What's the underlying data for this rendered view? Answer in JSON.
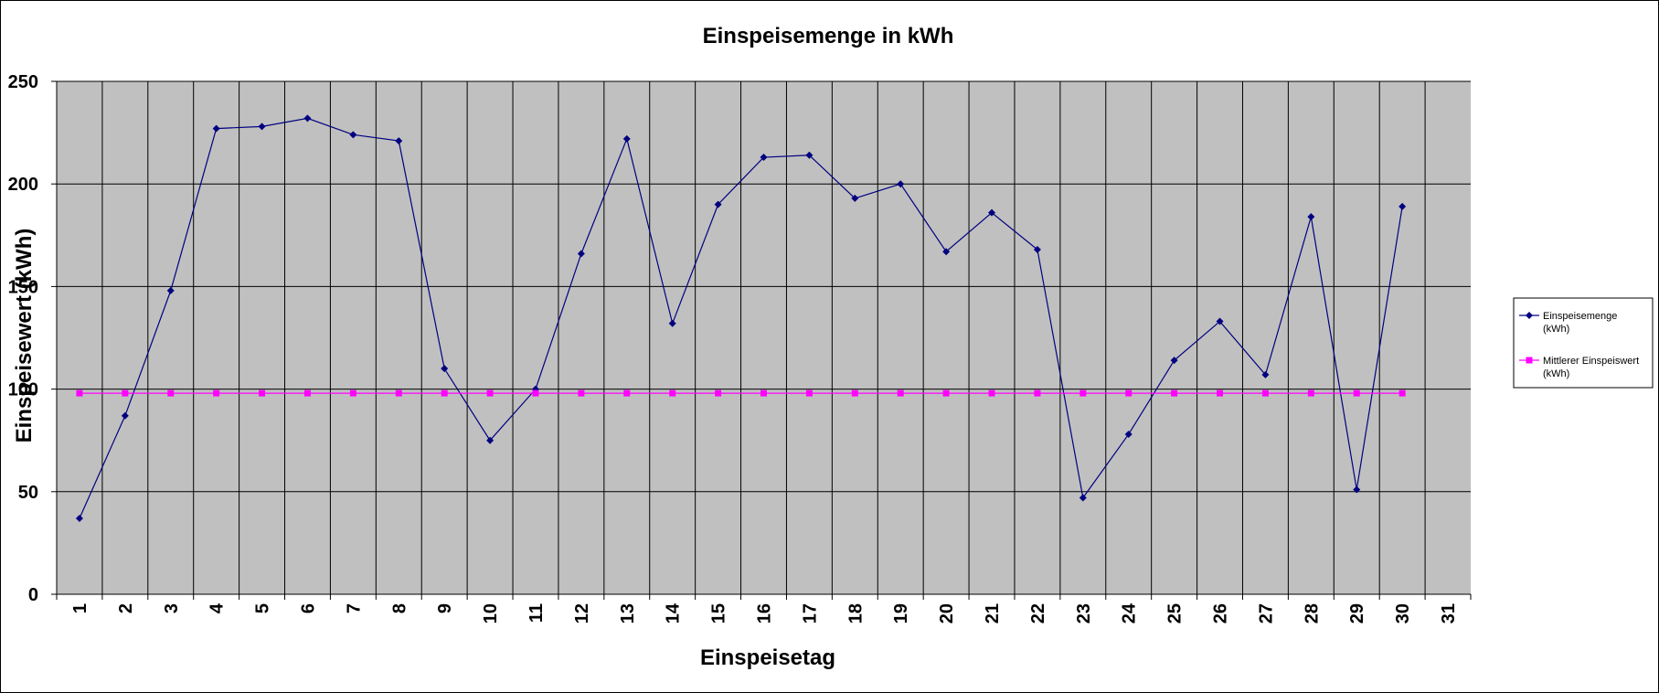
{
  "chart_data": {
    "type": "line",
    "title": "Einspeisemenge in kWh",
    "xlabel": "Einspeisetag",
    "ylabel": "Einspeisewert (kWh)",
    "ylim": [
      0,
      250
    ],
    "yticks": [
      0,
      50,
      100,
      150,
      200,
      250
    ],
    "grid": true,
    "legend_position": "right",
    "background_color": "#c0c0c0",
    "categories": [
      "1",
      "2",
      "3",
      "4",
      "5",
      "6",
      "7",
      "8",
      "9",
      "10",
      "11",
      "12",
      "13",
      "14",
      "15",
      "16",
      "17",
      "18",
      "19",
      "20",
      "21",
      "22",
      "23",
      "24",
      "25",
      "26",
      "27",
      "28",
      "29",
      "30",
      "31"
    ],
    "series": [
      {
        "name": "Einspeisemenge (kWh)",
        "name_lines": [
          "Einspeisemenge",
          "(kWh)"
        ],
        "color": "#000080",
        "marker": "diamond",
        "values": [
          37,
          87,
          148,
          227,
          228,
          232,
          224,
          221,
          110,
          75,
          100,
          166,
          222,
          132,
          190,
          213,
          214,
          193,
          200,
          167,
          186,
          168,
          47,
          78,
          114,
          133,
          107,
          184,
          51,
          189,
          null
        ]
      },
      {
        "name": "Mittlerer Einspeiswert (kWh)",
        "name_lines": [
          "Mittlerer Einspeiswert",
          "(kWh)"
        ],
        "color": "#ff00ff",
        "marker": "square",
        "values": [
          98,
          98,
          98,
          98,
          98,
          98,
          98,
          98,
          98,
          98,
          98,
          98,
          98,
          98,
          98,
          98,
          98,
          98,
          98,
          98,
          98,
          98,
          98,
          98,
          98,
          98,
          98,
          98,
          98,
          98,
          null
        ]
      }
    ]
  }
}
